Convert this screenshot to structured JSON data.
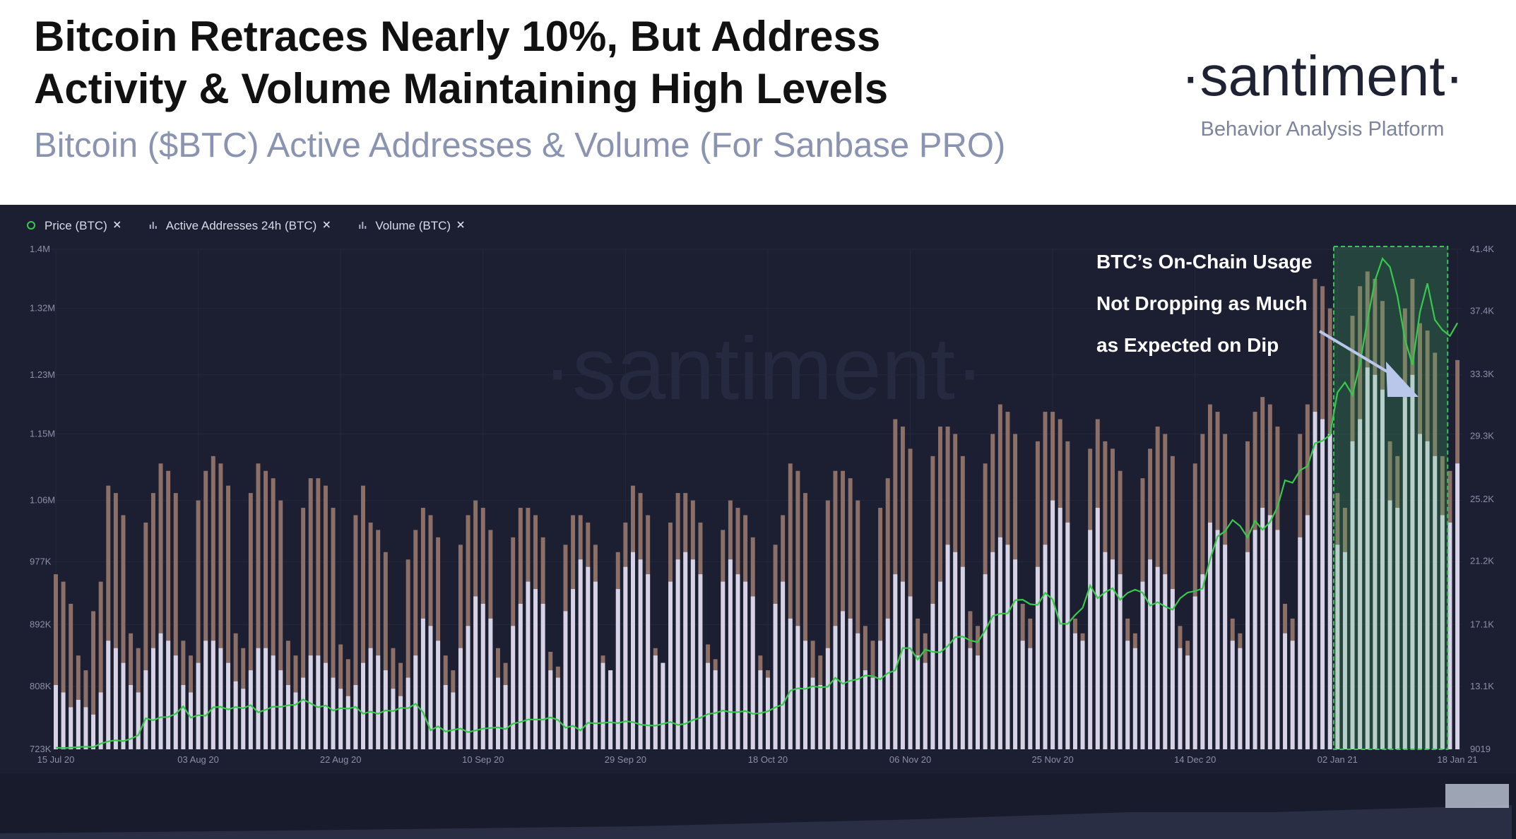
{
  "header": {
    "title_lines": [
      "Bitcoin Retraces Nearly 10%, But Address",
      "Activity & Volume Maintaining High Levels"
    ],
    "subtitle": "Bitcoin ($BTC) Active Addresses & Volume (For Sanbase PRO)",
    "logo": "·santiment·",
    "tagline": "Behavior Analysis Platform"
  },
  "chart_data": {
    "type": "bar",
    "watermark": "·santiment·",
    "annotation": {
      "lines": [
        "BTC’s On-Chain Usage",
        "Not Dropping as Much",
        "as Expected on Dip"
      ],
      "highlight_from": "02 Jan 21"
    },
    "categories": [
      "15 Jul 20",
      null,
      null,
      null,
      null,
      null,
      null,
      null,
      null,
      null,
      null,
      null,
      null,
      null,
      null,
      null,
      null,
      null,
      null,
      "03 Aug 20",
      null,
      null,
      null,
      null,
      null,
      null,
      null,
      null,
      null,
      null,
      null,
      null,
      null,
      null,
      null,
      null,
      null,
      null,
      "22 Aug 20",
      null,
      null,
      null,
      null,
      null,
      null,
      null,
      null,
      null,
      null,
      null,
      null,
      null,
      null,
      null,
      null,
      null,
      null,
      "10 Sep 20",
      null,
      null,
      null,
      null,
      null,
      null,
      null,
      null,
      null,
      null,
      null,
      null,
      null,
      null,
      null,
      null,
      null,
      null,
      "29 Sep 20",
      null,
      null,
      null,
      null,
      null,
      null,
      null,
      null,
      null,
      null,
      null,
      null,
      null,
      null,
      null,
      null,
      null,
      null,
      "18 Oct 20",
      null,
      null,
      null,
      null,
      null,
      null,
      null,
      null,
      null,
      null,
      null,
      null,
      null,
      null,
      null,
      null,
      null,
      null,
      "06 Nov 20",
      null,
      null,
      null,
      null,
      null,
      null,
      null,
      null,
      null,
      null,
      null,
      null,
      null,
      null,
      null,
      null,
      null,
      null,
      "25 Nov 20",
      null,
      null,
      null,
      null,
      null,
      null,
      null,
      null,
      null,
      null,
      null,
      null,
      null,
      null,
      null,
      null,
      null,
      null,
      "14 Dec 20",
      null,
      null,
      null,
      null,
      null,
      null,
      null,
      null,
      null,
      null,
      null,
      null,
      null,
      null,
      null,
      null,
      null,
      null,
      "02 Jan 21",
      null,
      null,
      null,
      null,
      null,
      null,
      null,
      null,
      null,
      null,
      null,
      null,
      null,
      null,
      null,
      "18 Jan 21"
    ],
    "ylim": [
      723,
      1400
    ],
    "yticks": [
      {
        "value": 723,
        "label": "723K"
      },
      {
        "value": 808,
        "label": "808K"
      },
      {
        "value": 892,
        "label": "892K"
      },
      {
        "value": 977,
        "label": "977K"
      },
      {
        "value": 1060,
        "label": "1.06M"
      },
      {
        "value": 1150,
        "label": "1.15M"
      },
      {
        "value": 1230,
        "label": "1.23M"
      },
      {
        "value": 1320,
        "label": "1.32M"
      },
      {
        "value": 1400,
        "label": "1.4M"
      }
    ],
    "y2lim": [
      9019,
      41400
    ],
    "y2ticks": [
      9019,
      {
        "value": 13100,
        "label": "13.1K"
      },
      {
        "value": 17100,
        "label": "17.1K"
      },
      {
        "value": 21200,
        "label": "21.2K"
      },
      {
        "value": 25200,
        "label": "25.2K"
      },
      {
        "value": 29300,
        "label": "29.3K"
      },
      {
        "value": 33300,
        "label": "33.3K"
      },
      {
        "value": 37400,
        "label": "37.4K"
      },
      {
        "value": 41400,
        "label": "41.4K"
      }
    ],
    "series": [
      {
        "name": "Price (BTC)",
        "type": "line",
        "axis": "y2",
        "color": "#38c94c",
        "values": [
          9130,
          9090,
          9130,
          9160,
          9190,
          9160,
          9390,
          9530,
          9610,
          9550,
          9700,
          9930,
          11030,
          10900,
          11100,
          11110,
          11320,
          11800,
          11070,
          11230,
          11190,
          11740,
          11770,
          11600,
          11760,
          11680,
          11880,
          11410,
          11580,
          11780,
          11770,
          11870,
          11910,
          12250,
          11990,
          11740,
          11860,
          11530,
          11680,
          11650,
          11770,
          11330,
          11460,
          11320,
          11540,
          11500,
          11710,
          11680,
          11970,
          11410,
          10250,
          10510,
          10170,
          10280,
          10370,
          10130,
          10240,
          10360,
          10400,
          10440,
          10330,
          10680,
          10790,
          10950,
          10950,
          10940,
          11090,
          10920,
          10420,
          10540,
          10240,
          10740,
          10700,
          10730,
          10770,
          10710,
          10840,
          10780,
          10620,
          10570,
          10550,
          10670,
          10790,
          10600,
          10670,
          10920,
          11060,
          11300,
          11370,
          11530,
          11430,
          11430,
          11500,
          11320,
          11360,
          11480,
          11740,
          11920,
          12820,
          12970,
          12930,
          13110,
          13030,
          13070,
          13650,
          13270,
          13460,
          13560,
          13800,
          13760,
          13550,
          13950,
          14130,
          15580,
          15570,
          14830,
          15480,
          15330,
          15300,
          15700,
          16280,
          16320,
          16070,
          15960,
          16720,
          17650,
          17800,
          17820,
          18680,
          18710,
          18420,
          18370,
          19160,
          18720,
          17150,
          17140,
          17720,
          18180,
          19630,
          18800,
          19200,
          19450,
          18700,
          19150,
          19360,
          19170,
          18320,
          18550,
          18260,
          18060,
          18800,
          19170,
          19270,
          19430,
          21310,
          22800,
          23140,
          23870,
          23480,
          22740,
          23820,
          23240,
          23730,
          24710,
          26440,
          26280,
          27080,
          27360,
          28840,
          29000,
          29370,
          32130,
          32780,
          31970,
          33990,
          36820,
          39370,
          40800,
          40250,
          38360,
          35570,
          33920,
          37320,
          39190,
          36830,
          36180,
          35790,
          36630
        ]
      },
      {
        "name": "Active Addresses 24h (BTC)",
        "type": "bar",
        "color": "#8c6f67",
        "values": [
          960,
          950,
          920,
          850,
          830,
          910,
          950,
          1080,
          1070,
          1040,
          880,
          860,
          1030,
          1070,
          1110,
          1100,
          1070,
          870,
          850,
          1060,
          1100,
          1120,
          1110,
          1080,
          880,
          860,
          1070,
          1110,
          1100,
          1090,
          1060,
          870,
          850,
          1050,
          1090,
          1090,
          1080,
          1050,
          865,
          845,
          1040,
          1080,
          1030,
          1020,
          990,
          860,
          840,
          980,
          1020,
          1050,
          1040,
          1010,
          850,
          830,
          1000,
          1040,
          1060,
          1050,
          1020,
          860,
          840,
          1010,
          1050,
          1050,
          1040,
          1010,
          855,
          835,
          1000,
          1040,
          1040,
          1030,
          1000,
          850,
          830,
          990,
          1030,
          1080,
          1070,
          1040,
          860,
          840,
          1030,
          1070,
          1070,
          1060,
          1030,
          865,
          845,
          1020,
          1060,
          1050,
          1040,
          1010,
          850,
          830,
          1000,
          1040,
          1110,
          1100,
          1070,
          870,
          850,
          1060,
          1100,
          1100,
          1090,
          1060,
          890,
          870,
          1050,
          1090,
          1170,
          1160,
          1130,
          900,
          880,
          1120,
          1160,
          1160,
          1150,
          1120,
          910,
          890,
          1110,
          1150,
          1190,
          1180,
          1150,
          920,
          900,
          1140,
          1180,
          1180,
          1170,
          1140,
          900,
          880,
          1130,
          1170,
          1140,
          1130,
          1100,
          900,
          880,
          1090,
          1130,
          1160,
          1150,
          1120,
          890,
          870,
          1110,
          1150,
          1190,
          1180,
          1150,
          900,
          880,
          1140,
          1180,
          1200,
          1190,
          1160,
          920,
          900,
          1150,
          1190,
          1360,
          1350,
          1320,
          1070,
          1050,
          1310,
          1350,
          1370,
          1360,
          1330,
          1140,
          1120,
          1320,
          1360,
          1300,
          1290,
          1260,
          1120,
          1100,
          1250
        ]
      },
      {
        "name": "Volume (BTC)",
        "type": "bar",
        "color": "#d6d3e6",
        "values": [
          810,
          800,
          780,
          790,
          780,
          770,
          800,
          870,
          860,
          840,
          810,
          800,
          830,
          860,
          880,
          870,
          850,
          810,
          800,
          840,
          870,
          870,
          860,
          840,
          815,
          805,
          830,
          860,
          860,
          850,
          830,
          810,
          800,
          820,
          850,
          850,
          840,
          820,
          805,
          795,
          810,
          840,
          860,
          850,
          830,
          805,
          795,
          820,
          850,
          900,
          890,
          870,
          810,
          800,
          860,
          890,
          930,
          920,
          900,
          820,
          810,
          890,
          920,
          950,
          940,
          920,
          830,
          820,
          910,
          940,
          980,
          970,
          950,
          840,
          830,
          940,
          970,
          990,
          980,
          960,
          850,
          840,
          950,
          980,
          990,
          980,
          960,
          840,
          830,
          950,
          980,
          960,
          950,
          930,
          830,
          820,
          920,
          950,
          900,
          890,
          870,
          820,
          810,
          860,
          890,
          910,
          900,
          880,
          830,
          820,
          870,
          900,
          960,
          950,
          930,
          850,
          840,
          920,
          950,
          1000,
          990,
          970,
          860,
          850,
          960,
          990,
          1010,
          1000,
          980,
          870,
          860,
          970,
          1000,
          1060,
          1050,
          1030,
          880,
          870,
          1020,
          1050,
          990,
          980,
          960,
          870,
          860,
          950,
          980,
          970,
          960,
          940,
          860,
          850,
          930,
          960,
          1030,
          1020,
          1000,
          870,
          860,
          990,
          1020,
          1050,
          1040,
          1020,
          880,
          870,
          1010,
          1040,
          1180,
          1170,
          1150,
          1000,
          990,
          1140,
          1170,
          1240,
          1230,
          1210,
          1060,
          1050,
          1200,
          1230,
          1150,
          1140,
          1120,
          1040,
          1030,
          1110
        ]
      }
    ]
  }
}
